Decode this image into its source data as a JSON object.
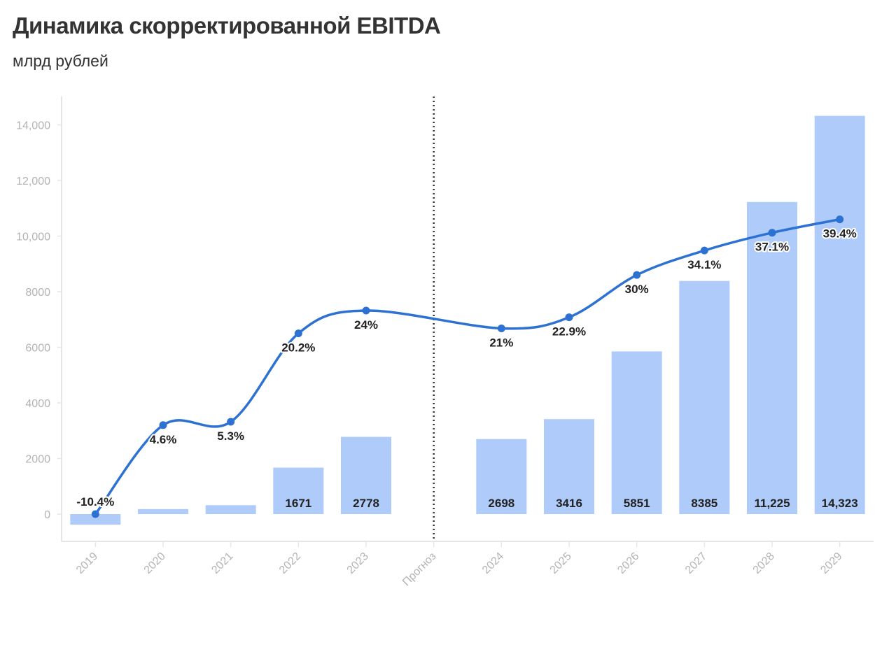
{
  "header": {
    "title": "Динамика скорректированной EBITDA",
    "subtitle": "млрд рублей"
  },
  "colors": {
    "bar": "#aecbfa",
    "line": "#2d72d2",
    "axis": "#e6e6e6",
    "divider": "#333333"
  },
  "chart_data": {
    "type": "bar",
    "categories": [
      "2019",
      "2020",
      "2021",
      "2022",
      "2023",
      "Прогноз",
      "2024",
      "2025",
      "2026",
      "2027",
      "2028",
      "2029"
    ],
    "ylim": [
      -1000,
      15000
    ],
    "yticks": [
      0,
      2000,
      4000,
      6000,
      8000,
      10000,
      12000,
      14000
    ],
    "ytick_labels": [
      "0",
      "2000",
      "4000",
      "6000",
      "8000",
      "10,000",
      "12,000",
      "14,000"
    ],
    "series": [
      {
        "values": [
          -380,
          180,
          320,
          1671,
          2778,
          null,
          2698,
          3416,
          5851,
          8385,
          11225,
          14323
        ],
        "labels": [
          "",
          "",
          "",
          "1671",
          "2778",
          "",
          "2698",
          "3416",
          "5851",
          "8385",
          "11,225",
          "14,323"
        ]
      },
      {
        "type": "line",
        "values": [
          -10.4,
          4.6,
          5.3,
          20.2,
          24,
          null,
          21,
          22.9,
          30,
          34.1,
          37.1,
          39.4
        ],
        "labels": [
          "-10.4%",
          "4.6%",
          "5.3%",
          "20.2%",
          "24%",
          "",
          "21%",
          "22.9%",
          "30%",
          "34.1%",
          "37.1%",
          "39.4%"
        ],
        "plotted_on_axis": [
          0,
          3200,
          3320,
          6500,
          7320,
          null,
          6680,
          7080,
          8600,
          9480,
          10120,
          10600
        ]
      }
    ],
    "divider_after": "Прогноз",
    "grid": false,
    "legend": "none"
  }
}
